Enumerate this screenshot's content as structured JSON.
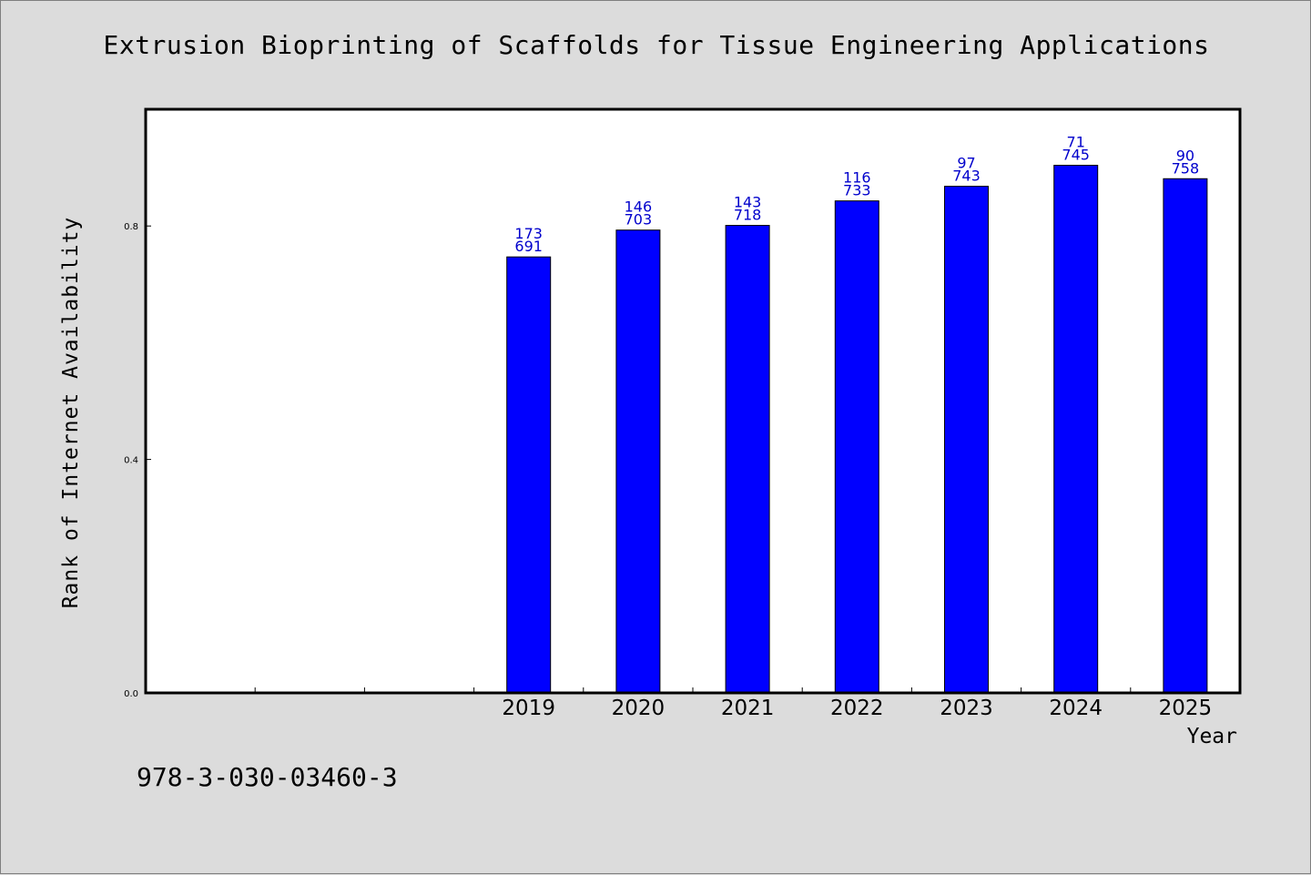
{
  "chart_data": {
    "type": "bar",
    "title": "Extrusion Bioprinting of Scaffolds for Tissue Engineering Applications",
    "xlabel": "Year",
    "ylabel": "Rank of Internet Availability",
    "footer": "978-3-030-03460-3",
    "categories": [
      "",
      "",
      "",
      "2019",
      "2020",
      "2021",
      "2022",
      "2023",
      "2024",
      "2025"
    ],
    "values": [
      null,
      null,
      null,
      0.747,
      0.793,
      0.801,
      0.843,
      0.868,
      0.904,
      0.881
    ],
    "bar_labels_top": [
      "",
      "",
      "",
      "173",
      "146",
      "143",
      "116",
      "97",
      "71",
      "90"
    ],
    "bar_labels_bottom": [
      "",
      "",
      "",
      "691",
      "703",
      "718",
      "733",
      "743",
      "745",
      "758"
    ],
    "ylim": [
      0,
      1.0
    ],
    "yticks": [
      0.0,
      0.4,
      0.8
    ],
    "ytick_labels": [
      "0.0",
      "0.4",
      "0.8"
    ],
    "grid": false,
    "colors": {
      "bar": "#0000ff",
      "bar_label": "#0000cc",
      "plot_bg": "#ffffff",
      "page_bg": "#dcdcdc"
    }
  }
}
